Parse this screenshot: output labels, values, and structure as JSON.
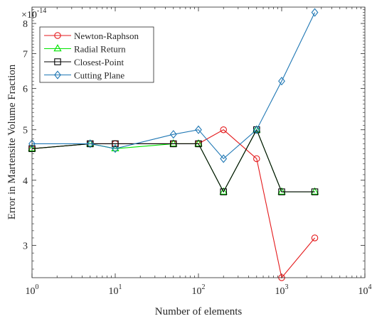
{
  "chart_data": {
    "type": "line",
    "xlabel": "Number of elements",
    "ylabel": "Error in Martensite Volume Fraction",
    "xscale": "log",
    "yscale": "log",
    "xlim": [
      1,
      10000
    ],
    "ylim": [
      2.6,
      8.6
    ],
    "y_multiplier_label": "×10",
    "y_multiplier_exp": "-14",
    "x_ticks": [
      {
        "value": 1,
        "base": "10",
        "exp": "0"
      },
      {
        "value": 10,
        "base": "10",
        "exp": "1"
      },
      {
        "value": 100,
        "base": "10",
        "exp": "2"
      },
      {
        "value": 1000,
        "base": "10",
        "exp": "3"
      },
      {
        "value": 10000,
        "base": "10",
        "exp": "4"
      }
    ],
    "y_ticks": [
      3,
      4,
      5,
      6,
      7,
      8
    ],
    "y_tick_labels": [
      "3",
      "4",
      "5",
      "6",
      "7",
      "8"
    ],
    "grid": false,
    "legend_position": "top-left",
    "series": [
      {
        "name": "Newton-Raphson",
        "color": "#e41a1c",
        "marker": "circle",
        "x": [
          1,
          5,
          10,
          50,
          100,
          200,
          500,
          1000,
          2500
        ],
        "y": [
          4.6,
          4.7,
          4.7,
          4.7,
          4.7,
          5.0,
          4.4,
          2.6,
          3.1
        ]
      },
      {
        "name": "Radial Return",
        "color": "#00e400",
        "marker": "triangle",
        "x": [
          1,
          5,
          10,
          50,
          100,
          200,
          500,
          1000,
          2500
        ],
        "y": [
          4.6,
          4.7,
          4.6,
          4.7,
          4.7,
          3.8,
          5.0,
          3.8,
          3.8
        ]
      },
      {
        "name": "Closest-Point",
        "color": "#000000",
        "marker": "square",
        "x": [
          1,
          5,
          10,
          50,
          100,
          200,
          500,
          1000,
          2500
        ],
        "y": [
          4.6,
          4.7,
          4.7,
          4.7,
          4.7,
          3.8,
          5.0,
          3.8,
          3.8
        ]
      },
      {
        "name": "Cutting Plane",
        "color": "#1f77b4",
        "marker": "diamond",
        "x": [
          1,
          5,
          10,
          50,
          100,
          200,
          500,
          1000,
          2500
        ],
        "y": [
          4.7,
          4.7,
          4.6,
          4.9,
          5.0,
          4.4,
          5.0,
          6.2,
          8.4
        ]
      }
    ]
  }
}
